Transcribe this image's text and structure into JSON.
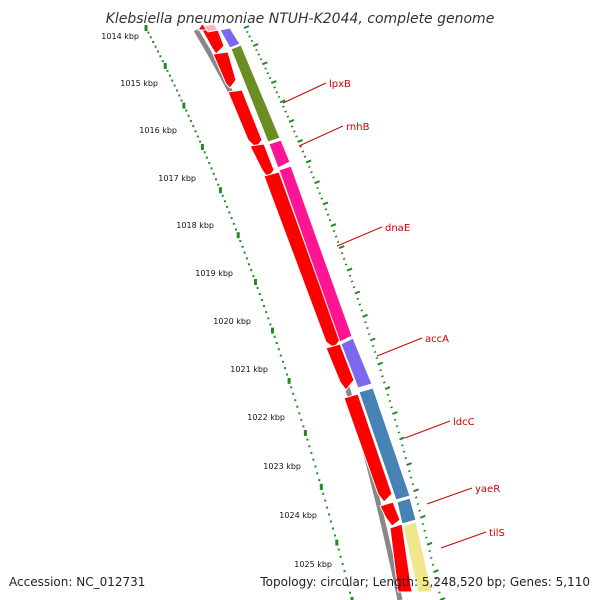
{
  "title": "Klebsiella pneumoniae NTUH-K2044, complete genome",
  "footer": {
    "accession": "Accession: NC_012731",
    "summary": "Topology: circular; Length: 5,248,520 bp; Genes: 5,110"
  },
  "scale": {
    "unit": "kbp",
    "labels": [
      "1014 kbp",
      "1015 kbp",
      "1016 kbp",
      "1017 kbp",
      "1018 kbp",
      "1019 kbp",
      "1020 kbp",
      "1021 kbp",
      "1022 kbp",
      "1023 kbp",
      "1024 kbp",
      "1025 kbp"
    ]
  },
  "genes": [
    {
      "name": "lpxB",
      "color": "#6b8e23"
    },
    {
      "name": "rnhB",
      "color": "#ff1493"
    },
    {
      "name": "dnaE",
      "color": "#ff1493"
    },
    {
      "name": "accA",
      "color": "#7b68ee"
    },
    {
      "name": "ldcC",
      "color": "#4682b4"
    },
    {
      "name": "yaeR",
      "color": "#4682b4"
    },
    {
      "name": "tilS",
      "color": "#f0e68c"
    }
  ],
  "colors": {
    "cds": "#ff0000",
    "label_line": "#cc0000",
    "tick": "#228b22",
    "backbone": "#888888",
    "gene_purple": "#7b68ee",
    "gene_olive": "#6b8e23",
    "gene_pink": "#ff1493",
    "gene_steel": "#4682b4",
    "gene_khaki": "#f0e68c"
  }
}
